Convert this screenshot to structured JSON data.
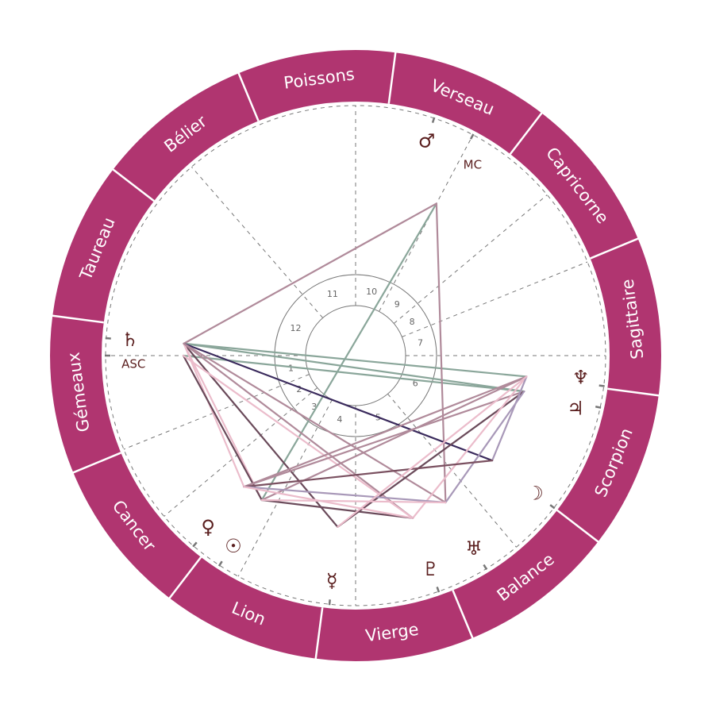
{
  "chart": {
    "colors": {
      "zodiac_ring": "#b03570",
      "ring_divider": "#ffffff",
      "glyph": "#5a1e1e",
      "house_lines": "#777777",
      "house_circles": "#777777"
    },
    "signs": [
      {
        "name": "Bélier",
        "start": 0
      },
      {
        "name": "Taureau",
        "start": 30
      },
      {
        "name": "Gémeaux",
        "start": 60
      },
      {
        "name": "Cancer",
        "start": 90
      },
      {
        "name": "Lion",
        "start": 120
      },
      {
        "name": "Vierge",
        "start": 150
      },
      {
        "name": "Balance",
        "start": 180
      },
      {
        "name": "Scorpion",
        "start": 210
      },
      {
        "name": "Sagittaire",
        "start": 240
      },
      {
        "name": "Capricorne",
        "start": 270
      },
      {
        "name": "Verseau",
        "start": 300
      },
      {
        "name": "Poissons",
        "start": 330
      }
    ],
    "angles": {
      "asc": {
        "label": "ASC",
        "longitude": 67.5
      },
      "mc": {
        "label": "MC",
        "longitude": 309.5
      }
    },
    "houses": [
      {
        "number": "1",
        "cusp": 67.5
      },
      {
        "number": "2",
        "cusp": 89.5
      },
      {
        "number": "3",
        "cusp": 107.5
      },
      {
        "number": "4",
        "cusp": 129.5
      },
      {
        "number": "5",
        "cusp": 157.5
      },
      {
        "number": "6",
        "cusp": 197.5
      },
      {
        "number": "7",
        "cusp": 247.5
      },
      {
        "number": "8",
        "cusp": 269.5
      },
      {
        "number": "9",
        "cusp": 287.5
      },
      {
        "number": "10",
        "cusp": 309.5
      },
      {
        "number": "11",
        "cusp": 337.5
      },
      {
        "number": "12",
        "cusp": 18.5
      }
    ],
    "planets": [
      {
        "key": "mars",
        "icon": "mars-icon",
        "glyph": "♂",
        "longitude": 319.2
      },
      {
        "key": "saturn",
        "icon": "saturn-icon",
        "glyph": "♄",
        "longitude": 63.5
      },
      {
        "key": "neptune",
        "icon": "neptune-icon",
        "glyph": "♆",
        "longitude": 240.5
      },
      {
        "key": "jupiter",
        "icon": "jupiter-icon",
        "glyph": "♃",
        "longitude": 235.5
      },
      {
        "key": "moon",
        "icon": "moon-icon",
        "glyph": "☽",
        "longitude": 210.0
      },
      {
        "key": "uranus",
        "icon": "uranus-icon",
        "glyph": "♅",
        "longitude": 189.0
      },
      {
        "key": "pluto",
        "icon": "pluto-icon",
        "glyph": "♇",
        "longitude": 176.9
      },
      {
        "key": "mercury",
        "icon": "mercury-icon",
        "glyph": "☿",
        "longitude": 151.5
      },
      {
        "key": "sun",
        "icon": "sun-icon",
        "glyph": "☉",
        "longitude": 124.5
      },
      {
        "key": "venus",
        "icon": "venus-icon",
        "glyph": "♀",
        "longitude": 117.1
      }
    ],
    "aspect_colors": {
      "green": "#8aa69a",
      "mauve": "#b08a9a",
      "navy": "#3a2a5c",
      "dark": "#6a4a5a",
      "pink": "#ebbccb",
      "lilac": "#a898b8",
      "darkmauve": "#7a5060"
    },
    "aspects": [
      {
        "from": "saturn",
        "to": "neptune",
        "color": "green"
      },
      {
        "from": "saturn",
        "to": "jupiter",
        "color": "green"
      },
      {
        "from": "asc",
        "to": "jupiter",
        "color": "green"
      },
      {
        "from": "sun",
        "to": "mc",
        "color": "green"
      },
      {
        "from": "saturn",
        "to": "mc",
        "color": "mauve"
      },
      {
        "from": "mc",
        "to": "uranus",
        "color": "mauve"
      },
      {
        "from": "saturn",
        "to": "moon",
        "color": "navy"
      },
      {
        "from": "saturn",
        "to": "mercury",
        "color": "dark"
      },
      {
        "from": "saturn",
        "to": "venus",
        "color": "pink"
      },
      {
        "from": "saturn",
        "to": "sun",
        "color": "pink"
      },
      {
        "from": "saturn",
        "to": "pluto",
        "color": "mauve"
      },
      {
        "from": "saturn",
        "to": "uranus",
        "color": "mauve"
      },
      {
        "from": "asc",
        "to": "sun",
        "color": "dark"
      },
      {
        "from": "asc",
        "to": "pluto",
        "color": "pink"
      },
      {
        "from": "neptune",
        "to": "venus",
        "color": "mauve"
      },
      {
        "from": "neptune",
        "to": "sun",
        "color": "mauve"
      },
      {
        "from": "jupiter",
        "to": "venus",
        "color": "mauve"
      },
      {
        "from": "jupiter",
        "to": "mercury",
        "color": "dark"
      },
      {
        "from": "neptune",
        "to": "pluto",
        "color": "pink"
      },
      {
        "from": "jupiter",
        "to": "uranus",
        "color": "lilac"
      },
      {
        "from": "moon",
        "to": "neptune",
        "color": "lilac"
      },
      {
        "from": "moon",
        "to": "venus",
        "color": "darkmauve"
      },
      {
        "from": "uranus",
        "to": "venus",
        "color": "lilac"
      },
      {
        "from": "sun",
        "to": "pluto",
        "color": "dark"
      },
      {
        "from": "venus",
        "to": "pluto",
        "color": "pink"
      },
      {
        "from": "mercury",
        "to": "neptune",
        "color": "pink"
      },
      {
        "from": "sun",
        "to": "uranus",
        "color": "pink"
      }
    ]
  }
}
